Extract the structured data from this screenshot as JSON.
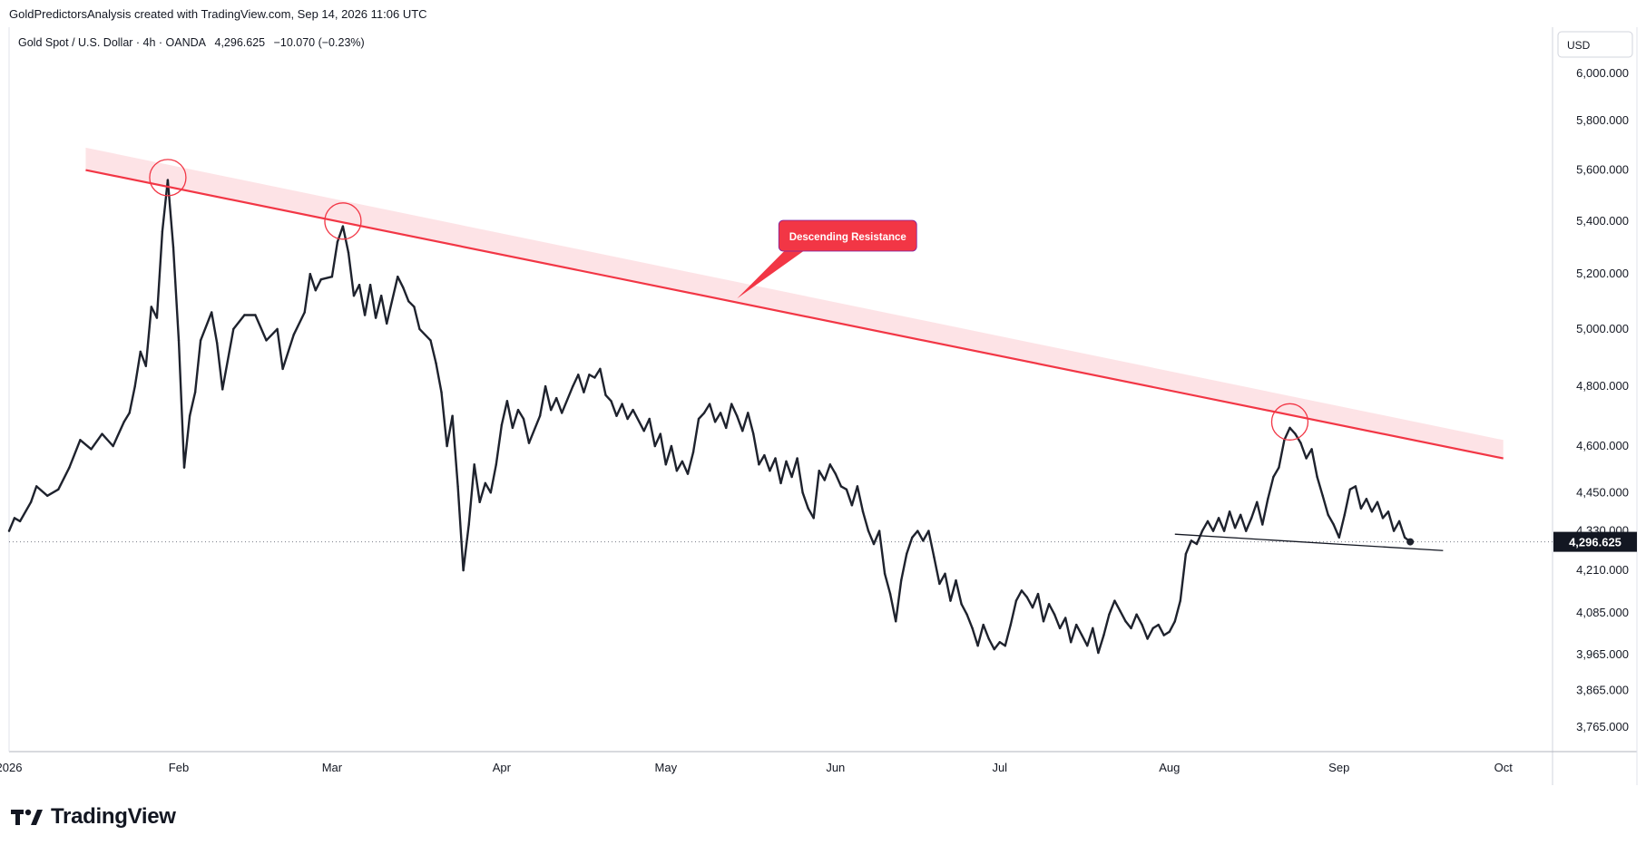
{
  "header": {
    "attribution": "GoldPredictorsAnalysis created with TradingView.com, Sep 14, 2026 11:06 UTC"
  },
  "legend": {
    "symbol": "Gold Spot / U.S. Dollar · 4h · OANDA",
    "last": "4,296.625",
    "change": "−10.070 (−0.23%)"
  },
  "footer": {
    "logo_text": "TradingView"
  },
  "colors": {
    "price_line": "#1e222d",
    "resistance": "#f23645",
    "resistance_band": "#fcd9dd",
    "callout": "#f23645",
    "axis_text": "#131722"
  },
  "chart_data": {
    "type": "line",
    "title": "Gold Spot / U.S. Dollar · 4h · OANDA",
    "currency": "USD",
    "y_scale": "log",
    "ylim": [
      3700,
      6200
    ],
    "xlim": [
      "2026-01-01",
      "2026-10-10"
    ],
    "y_ticks": [
      "6,000.000",
      "5,800.000",
      "5,600.000",
      "5,400.000",
      "5,200.000",
      "5,000.000",
      "4,800.000",
      "4,600.000",
      "4,450.000",
      "4,330.000",
      "4,210.000",
      "4,085.000",
      "3,965.000",
      "3,865.000",
      "3,765.000"
    ],
    "y_tick_values": [
      6000,
      5800,
      5600,
      5400,
      5200,
      5000,
      4800,
      4600,
      4450,
      4330,
      4210,
      4085,
      3965,
      3865,
      3765
    ],
    "x_ticks": [
      {
        "label": "2026",
        "date": "2026-01-01"
      },
      {
        "label": "Feb",
        "date": "2026-02-01"
      },
      {
        "label": "Mar",
        "date": "2026-03-01"
      },
      {
        "label": "Apr",
        "date": "2026-04-01"
      },
      {
        "label": "May",
        "date": "2026-05-01"
      },
      {
        "label": "Jun",
        "date": "2026-06-01"
      },
      {
        "label": "Jul",
        "date": "2026-07-01"
      },
      {
        "label": "Aug",
        "date": "2026-08-01"
      },
      {
        "label": "Sep",
        "date": "2026-09-01"
      },
      {
        "label": "Oct",
        "date": "2026-10-01"
      }
    ],
    "last_price": 4296.625,
    "last_price_label": "4,296.625",
    "series": [
      {
        "points": [
          [
            "2026-01-01",
            4330
          ],
          [
            "2026-01-02",
            4370
          ],
          [
            "2026-01-03",
            4360
          ],
          [
            "2026-01-05",
            4420
          ],
          [
            "2026-01-06",
            4470
          ],
          [
            "2026-01-08",
            4440
          ],
          [
            "2026-01-10",
            4460
          ],
          [
            "2026-01-12",
            4530
          ],
          [
            "2026-01-14",
            4620
          ],
          [
            "2026-01-16",
            4590
          ],
          [
            "2026-01-18",
            4640
          ],
          [
            "2026-01-20",
            4600
          ],
          [
            "2026-01-22",
            4680
          ],
          [
            "2026-01-23",
            4710
          ],
          [
            "2026-01-24",
            4800
          ],
          [
            "2026-01-25",
            4920
          ],
          [
            "2026-01-26",
            4870
          ],
          [
            "2026-01-27",
            5080
          ],
          [
            "2026-01-28",
            5040
          ],
          [
            "2026-01-29",
            5360
          ],
          [
            "2026-01-30",
            5560
          ],
          [
            "2026-01-31",
            5300
          ],
          [
            "2026-02-01",
            4960
          ],
          [
            "2026-02-02",
            4530
          ],
          [
            "2026-02-03",
            4700
          ],
          [
            "2026-02-04",
            4780
          ],
          [
            "2026-02-05",
            4960
          ],
          [
            "2026-02-07",
            5060
          ],
          [
            "2026-02-08",
            4950
          ],
          [
            "2026-02-09",
            4790
          ],
          [
            "2026-02-11",
            5000
          ],
          [
            "2026-02-13",
            5050
          ],
          [
            "2026-02-15",
            5050
          ],
          [
            "2026-02-17",
            4960
          ],
          [
            "2026-02-19",
            5000
          ],
          [
            "2026-02-20",
            4860
          ],
          [
            "2026-02-22",
            4980
          ],
          [
            "2026-02-24",
            5060
          ],
          [
            "2026-02-25",
            5200
          ],
          [
            "2026-02-26",
            5140
          ],
          [
            "2026-02-27",
            5180
          ],
          [
            "2026-03-01",
            5190
          ],
          [
            "2026-03-02",
            5320
          ],
          [
            "2026-03-03",
            5380
          ],
          [
            "2026-03-04",
            5280
          ],
          [
            "2026-03-05",
            5120
          ],
          [
            "2026-03-06",
            5160
          ],
          [
            "2026-03-07",
            5050
          ],
          [
            "2026-03-08",
            5160
          ],
          [
            "2026-03-09",
            5040
          ],
          [
            "2026-03-10",
            5120
          ],
          [
            "2026-03-11",
            5020
          ],
          [
            "2026-03-13",
            5190
          ],
          [
            "2026-03-14",
            5150
          ],
          [
            "2026-03-15",
            5100
          ],
          [
            "2026-03-16",
            5080
          ],
          [
            "2026-03-17",
            5000
          ],
          [
            "2026-03-19",
            4960
          ],
          [
            "2026-03-20",
            4880
          ],
          [
            "2026-03-21",
            4780
          ],
          [
            "2026-03-22",
            4600
          ],
          [
            "2026-03-23",
            4700
          ],
          [
            "2026-03-24",
            4470
          ],
          [
            "2026-03-25",
            4210
          ],
          [
            "2026-03-26",
            4350
          ],
          [
            "2026-03-27",
            4540
          ],
          [
            "2026-03-28",
            4420
          ],
          [
            "2026-03-29",
            4480
          ],
          [
            "2026-03-30",
            4450
          ],
          [
            "2026-03-31",
            4540
          ],
          [
            "2026-04-01",
            4670
          ],
          [
            "2026-04-02",
            4750
          ],
          [
            "2026-04-03",
            4660
          ],
          [
            "2026-04-04",
            4720
          ],
          [
            "2026-04-05",
            4690
          ],
          [
            "2026-04-06",
            4610
          ],
          [
            "2026-04-08",
            4700
          ],
          [
            "2026-04-09",
            4800
          ],
          [
            "2026-04-10",
            4720
          ],
          [
            "2026-04-11",
            4760
          ],
          [
            "2026-04-12",
            4710
          ],
          [
            "2026-04-14",
            4800
          ],
          [
            "2026-04-15",
            4840
          ],
          [
            "2026-04-16",
            4780
          ],
          [
            "2026-04-17",
            4840
          ],
          [
            "2026-04-18",
            4830
          ],
          [
            "2026-04-19",
            4860
          ],
          [
            "2026-04-20",
            4770
          ],
          [
            "2026-04-21",
            4750
          ],
          [
            "2026-04-22",
            4700
          ],
          [
            "2026-04-23",
            4740
          ],
          [
            "2026-04-24",
            4690
          ],
          [
            "2026-04-25",
            4720
          ],
          [
            "2026-04-27",
            4650
          ],
          [
            "2026-04-28",
            4690
          ],
          [
            "2026-04-29",
            4600
          ],
          [
            "2026-04-30",
            4640
          ],
          [
            "2026-05-01",
            4540
          ],
          [
            "2026-05-02",
            4600
          ],
          [
            "2026-05-03",
            4520
          ],
          [
            "2026-05-04",
            4550
          ],
          [
            "2026-05-05",
            4510
          ],
          [
            "2026-05-06",
            4580
          ],
          [
            "2026-05-07",
            4690
          ],
          [
            "2026-05-08",
            4710
          ],
          [
            "2026-05-09",
            4740
          ],
          [
            "2026-05-10",
            4680
          ],
          [
            "2026-05-11",
            4710
          ],
          [
            "2026-05-12",
            4660
          ],
          [
            "2026-05-13",
            4740
          ],
          [
            "2026-05-14",
            4700
          ],
          [
            "2026-05-15",
            4650
          ],
          [
            "2026-05-16",
            4710
          ],
          [
            "2026-05-17",
            4640
          ],
          [
            "2026-05-18",
            4540
          ],
          [
            "2026-05-19",
            4570
          ],
          [
            "2026-05-20",
            4520
          ],
          [
            "2026-05-21",
            4560
          ],
          [
            "2026-05-22",
            4480
          ],
          [
            "2026-05-23",
            4550
          ],
          [
            "2026-05-24",
            4500
          ],
          [
            "2026-05-25",
            4560
          ],
          [
            "2026-05-26",
            4450
          ],
          [
            "2026-05-27",
            4400
          ],
          [
            "2026-05-28",
            4370
          ],
          [
            "2026-05-29",
            4520
          ],
          [
            "2026-05-30",
            4490
          ],
          [
            "2026-05-31",
            4540
          ],
          [
            "2026-06-01",
            4510
          ],
          [
            "2026-06-02",
            4470
          ],
          [
            "2026-06-03",
            4460
          ],
          [
            "2026-06-04",
            4410
          ],
          [
            "2026-06-05",
            4470
          ],
          [
            "2026-06-06",
            4390
          ],
          [
            "2026-06-07",
            4330
          ],
          [
            "2026-06-08",
            4290
          ],
          [
            "2026-06-09",
            4330
          ],
          [
            "2026-06-10",
            4200
          ],
          [
            "2026-06-11",
            4140
          ],
          [
            "2026-06-12",
            4060
          ],
          [
            "2026-06-13",
            4180
          ],
          [
            "2026-06-14",
            4260
          ],
          [
            "2026-06-15",
            4310
          ],
          [
            "2026-06-16",
            4330
          ],
          [
            "2026-06-17",
            4300
          ],
          [
            "2026-06-18",
            4330
          ],
          [
            "2026-06-19",
            4250
          ],
          [
            "2026-06-20",
            4170
          ],
          [
            "2026-06-21",
            4200
          ],
          [
            "2026-06-22",
            4120
          ],
          [
            "2026-06-23",
            4180
          ],
          [
            "2026-06-24",
            4110
          ],
          [
            "2026-06-25",
            4080
          ],
          [
            "2026-06-26",
            4040
          ],
          [
            "2026-06-27",
            3990
          ],
          [
            "2026-06-28",
            4050
          ],
          [
            "2026-06-29",
            4010
          ],
          [
            "2026-06-30",
            3980
          ],
          [
            "2026-07-01",
            4000
          ],
          [
            "2026-07-02",
            3990
          ],
          [
            "2026-07-03",
            4050
          ],
          [
            "2026-07-04",
            4120
          ],
          [
            "2026-07-05",
            4150
          ],
          [
            "2026-07-06",
            4130
          ],
          [
            "2026-07-07",
            4100
          ],
          [
            "2026-07-08",
            4140
          ],
          [
            "2026-07-09",
            4060
          ],
          [
            "2026-07-10",
            4110
          ],
          [
            "2026-07-11",
            4080
          ],
          [
            "2026-07-12",
            4040
          ],
          [
            "2026-07-13",
            4070
          ],
          [
            "2026-07-14",
            4000
          ],
          [
            "2026-07-15",
            4050
          ],
          [
            "2026-07-16",
            4020
          ],
          [
            "2026-07-17",
            3990
          ],
          [
            "2026-07-18",
            4040
          ],
          [
            "2026-07-19",
            3970
          ],
          [
            "2026-07-20",
            4020
          ],
          [
            "2026-07-21",
            4080
          ],
          [
            "2026-07-22",
            4120
          ],
          [
            "2026-07-23",
            4090
          ],
          [
            "2026-07-24",
            4060
          ],
          [
            "2026-07-25",
            4040
          ],
          [
            "2026-07-26",
            4080
          ],
          [
            "2026-07-27",
            4050
          ],
          [
            "2026-07-28",
            4010
          ],
          [
            "2026-07-29",
            4040
          ],
          [
            "2026-07-30",
            4050
          ],
          [
            "2026-07-31",
            4020
          ],
          [
            "2026-08-01",
            4030
          ],
          [
            "2026-08-02",
            4060
          ],
          [
            "2026-08-03",
            4120
          ],
          [
            "2026-08-04",
            4260
          ],
          [
            "2026-08-05",
            4300
          ],
          [
            "2026-08-06",
            4290
          ],
          [
            "2026-08-07",
            4330
          ],
          [
            "2026-08-08",
            4360
          ],
          [
            "2026-08-09",
            4330
          ],
          [
            "2026-08-10",
            4370
          ],
          [
            "2026-08-11",
            4330
          ],
          [
            "2026-08-12",
            4390
          ],
          [
            "2026-08-13",
            4340
          ],
          [
            "2026-08-14",
            4380
          ],
          [
            "2026-08-15",
            4330
          ],
          [
            "2026-08-16",
            4370
          ],
          [
            "2026-08-17",
            4420
          ],
          [
            "2026-08-18",
            4350
          ],
          [
            "2026-08-19",
            4430
          ],
          [
            "2026-08-20",
            4500
          ],
          [
            "2026-08-21",
            4530
          ],
          [
            "2026-08-22",
            4620
          ],
          [
            "2026-08-23",
            4660
          ],
          [
            "2026-08-24",
            4640
          ],
          [
            "2026-08-25",
            4610
          ],
          [
            "2026-08-26",
            4560
          ],
          [
            "2026-08-27",
            4590
          ],
          [
            "2026-08-28",
            4500
          ],
          [
            "2026-08-29",
            4440
          ],
          [
            "2026-08-30",
            4380
          ],
          [
            "2026-08-31",
            4350
          ],
          [
            "2026-09-01",
            4310
          ],
          [
            "2026-09-02",
            4380
          ],
          [
            "2026-09-03",
            4460
          ],
          [
            "2026-09-04",
            4470
          ],
          [
            "2026-09-05",
            4400
          ],
          [
            "2026-09-06",
            4430
          ],
          [
            "2026-09-07",
            4390
          ],
          [
            "2026-09-08",
            4420
          ],
          [
            "2026-09-09",
            4370
          ],
          [
            "2026-09-10",
            4390
          ],
          [
            "2026-09-11",
            4330
          ],
          [
            "2026-09-12",
            4360
          ],
          [
            "2026-09-13",
            4310
          ],
          [
            "2026-09-14",
            4296.625
          ]
        ]
      }
    ],
    "annotations": {
      "resistance_line": {
        "label": "Descending Resistance",
        "from": [
          "2026-01-15",
          5600
        ],
        "to": [
          "2026-10-01",
          4560
        ]
      },
      "resistance_band": {
        "from": [
          "2026-01-15",
          5690
        ],
        "to": [
          "2026-10-01",
          4620
        ]
      },
      "callout_anchor": [
        "2026-05-14",
        5110
      ],
      "support_line": {
        "from": [
          "2026-08-02",
          4320
        ],
        "to": [
          "2026-09-20",
          4270
        ]
      },
      "touch_circles": [
        [
          "2026-01-30",
          5570
        ],
        [
          "2026-03-03",
          5400
        ],
        [
          "2026-08-23",
          4680
        ]
      ]
    }
  }
}
